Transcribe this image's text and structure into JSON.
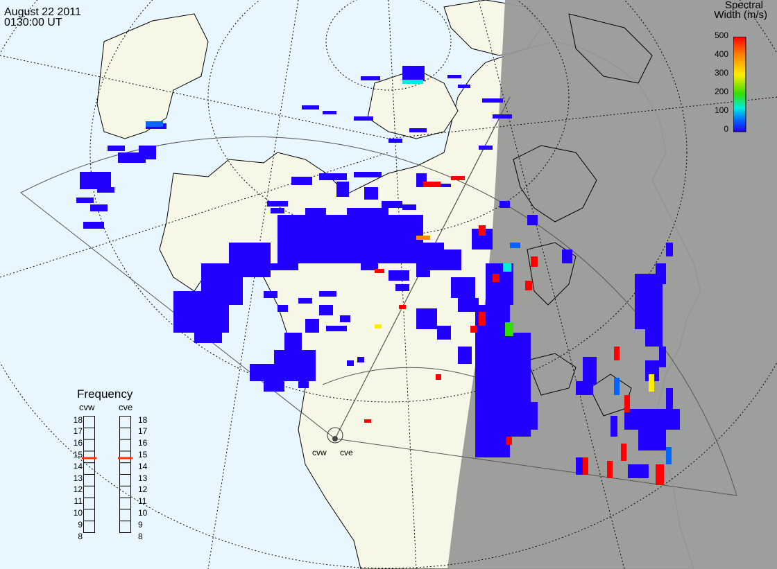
{
  "header": {
    "date": "August 22 2011",
    "time": "0130:00 UT"
  },
  "colorbar": {
    "title_line1": "Spectral",
    "title_line2": "Width (m/s)",
    "ticks": [
      "500",
      "400",
      "300",
      "200",
      "100",
      "0"
    ],
    "colors": [
      "#ff0000",
      "#ff8800",
      "#ffee00",
      "#33dd00",
      "#00eedd",
      "#0066ff",
      "#2200ff"
    ]
  },
  "frequency": {
    "title": "Frequency",
    "radars": [
      {
        "name": "cvw",
        "value_mhz": 14.9
      },
      {
        "name": "cve",
        "value_mhz": 14.9
      }
    ],
    "scale": [
      "18",
      "17",
      "16",
      "15",
      "14",
      "13",
      "12",
      "11",
      "10",
      "9",
      "8"
    ],
    "marker_color": "#ff3300"
  },
  "radar_labels": [
    "cvw",
    "cve"
  ],
  "map": {
    "ocean_color": "#e8f6ff",
    "land_color": "#f7f7e8",
    "night_color": "#999999",
    "scatter_color": "#2200ff"
  }
}
